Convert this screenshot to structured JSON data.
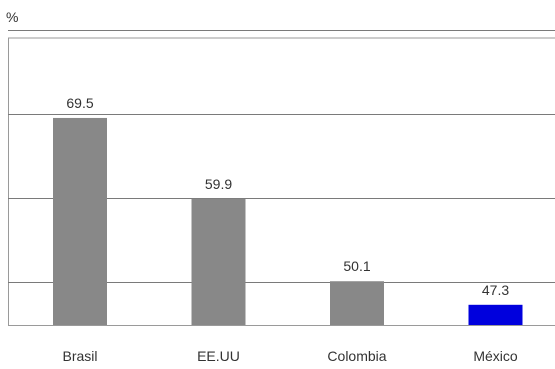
{
  "chart_data": {
    "type": "bar",
    "title": "",
    "ylabel": "%",
    "xlabel": "",
    "categories": [
      "Brasil",
      "EE.UU",
      "Colombia",
      "México"
    ],
    "values": [
      69.5,
      59.9,
      50.1,
      47.3
    ],
    "value_labels": [
      "69.5",
      "59.9",
      "50.1",
      "47.3"
    ],
    "bar_colors": [
      "#888888",
      "#888888",
      "#888888",
      "#0000dd"
    ],
    "gridline_values": [
      50,
      60,
      70,
      80
    ],
    "ylim": [
      44.9,
      79.0
    ],
    "grid": true,
    "legend": false
  },
  "colors": {
    "bar_default": "#888888",
    "bar_highlight": "#0000dd",
    "grid": "#7a7a7a",
    "frame": "#9a9a9a",
    "text": "#333333"
  }
}
